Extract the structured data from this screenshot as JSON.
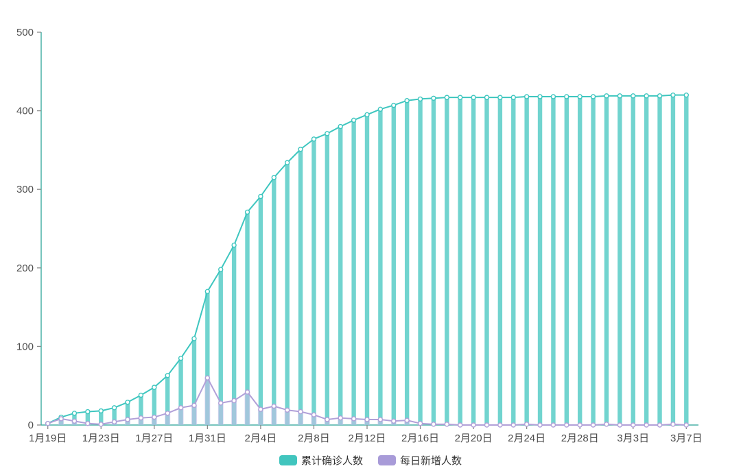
{
  "chart_data": {
    "type": "bar",
    "title": "",
    "xlabel": "",
    "ylabel": "",
    "ylim": [
      0,
      500
    ],
    "y_ticks": [
      0,
      100,
      200,
      300,
      400,
      500
    ],
    "x_tick_every": 4,
    "legend_position": "bottom-center",
    "grid": false,
    "categories": [
      "1月19日",
      "1月20日",
      "1月21日",
      "1月22日",
      "1月23日",
      "1月24日",
      "1月25日",
      "1月26日",
      "1月27日",
      "1月28日",
      "1月29日",
      "1月30日",
      "1月31日",
      "2月1日",
      "2月2日",
      "2月3日",
      "2月4日",
      "2月5日",
      "2月6日",
      "2月7日",
      "2月8日",
      "2月9日",
      "2月10日",
      "2月11日",
      "2月12日",
      "2月13日",
      "2月14日",
      "2月15日",
      "2月16日",
      "2月17日",
      "2月18日",
      "2月19日",
      "2月20日",
      "2月21日",
      "2月22日",
      "2月23日",
      "2月24日",
      "2月25日",
      "2月26日",
      "2月27日",
      "2月28日",
      "2月29日",
      "3月1日",
      "3月2日",
      "3月3日",
      "3月4日",
      "3月5日",
      "3月6日",
      "3月7日"
    ],
    "x_tick_labels": [
      "1月19日",
      "1月23日",
      "1月27日",
      "1月31日",
      "2月4日",
      "2月8日",
      "2月12日",
      "2月16日",
      "2月20日",
      "2月24日",
      "2月28日",
      "3月3日",
      "3月7日"
    ],
    "series": [
      {
        "name": "累计确诊人数",
        "render": "bar+line+markers",
        "line_color": "#3ec6bf",
        "bar_fill": "#52cac4",
        "bar_opacity": 0.82,
        "values": [
          2,
          10,
          15,
          17,
          18,
          22,
          29,
          38,
          48,
          63,
          85,
          110,
          170,
          198,
          229,
          271,
          291,
          315,
          334,
          351,
          364,
          371,
          380,
          388,
          395,
          402,
          407,
          413,
          415,
          416,
          417,
          417,
          417,
          417,
          417,
          417,
          418,
          418,
          418,
          418,
          418,
          418,
          419,
          419,
          419,
          419,
          419,
          420,
          420
        ]
      },
      {
        "name": "每日新增人数",
        "render": "bar+line+markers",
        "line_color": "#b1a0d8",
        "bar_fill": "#c9bce8",
        "bar_opacity": 0.55,
        "values": [
          2,
          8,
          5,
          2,
          1,
          4,
          7,
          9,
          10,
          15,
          22,
          25,
          60,
          28,
          31,
          42,
          20,
          24,
          19,
          17,
          13,
          7,
          9,
          8,
          7,
          7,
          5,
          6,
          2,
          1,
          1,
          0,
          0,
          0,
          0,
          0,
          1,
          0,
          0,
          0,
          0,
          0,
          1,
          0,
          0,
          0,
          0,
          1,
          0
        ]
      }
    ],
    "colors": {
      "axis_line": "#48b0a5",
      "tick_mark": "#8a8a8a",
      "axis_label": "#4d4d4d",
      "background": "#ffffff",
      "legend_swatch_1": "#41c5be",
      "legend_swatch_2": "#a89bd8"
    }
  },
  "legend": {
    "items": [
      {
        "label": "累计确诊人数"
      },
      {
        "label": "每日新增人数"
      }
    ]
  }
}
